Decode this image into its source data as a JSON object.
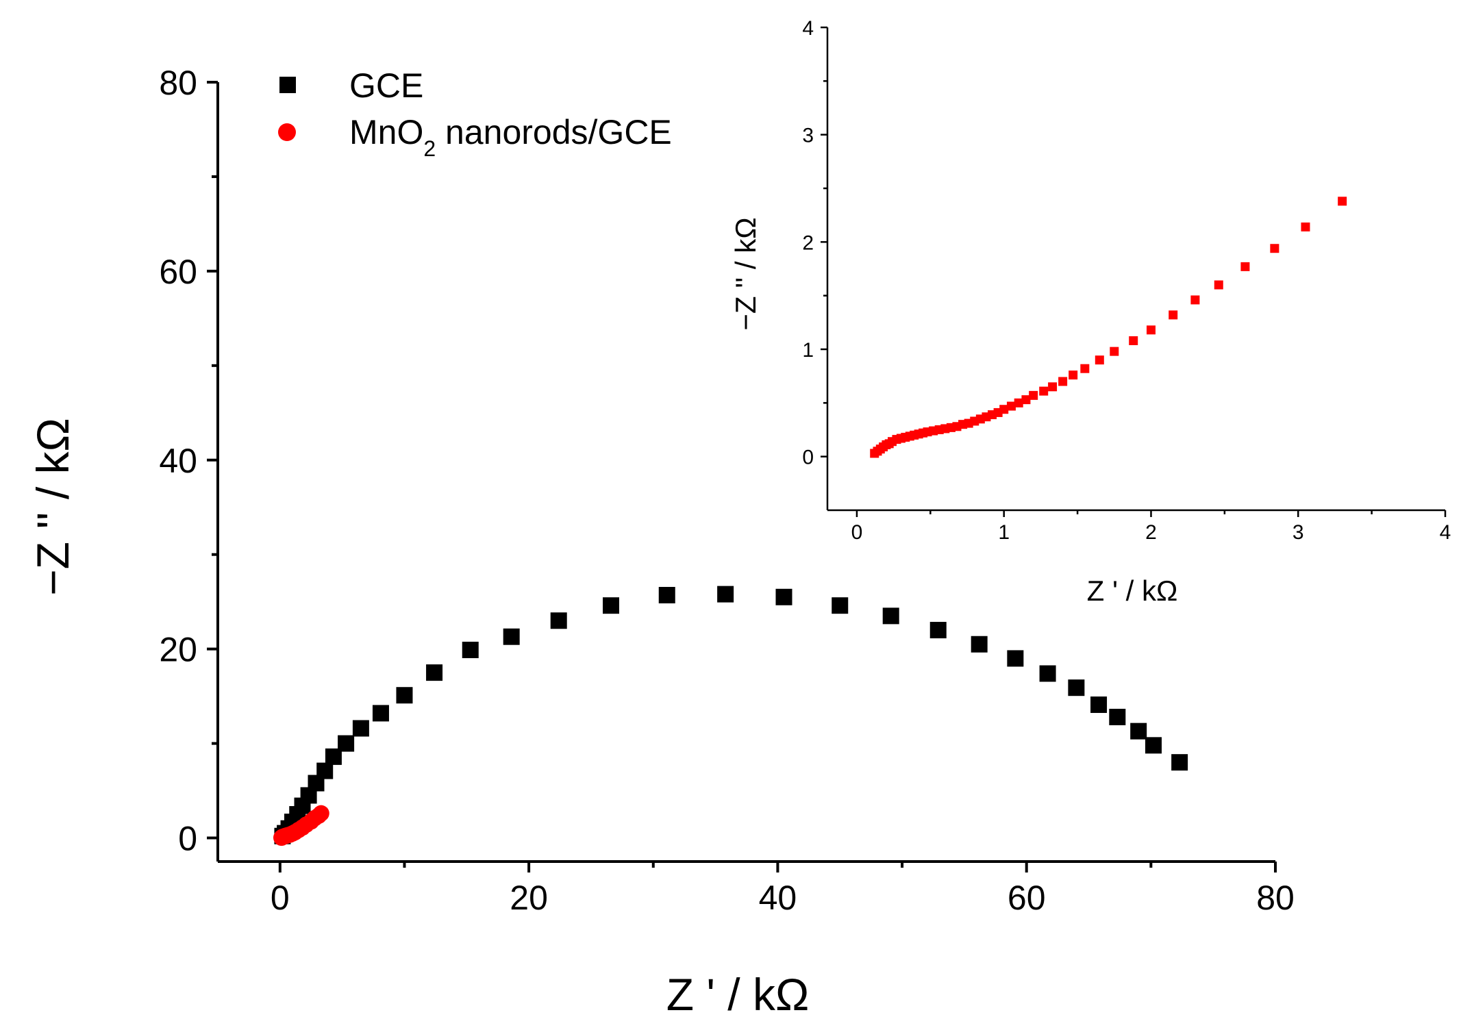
{
  "chart_data": [
    {
      "type": "scatter",
      "title": "",
      "xlabel": "Z ' / kΩ",
      "ylabel": "−Z '' / kΩ",
      "xlim": [
        -5,
        80
      ],
      "ylim": [
        -2.5,
        80
      ],
      "xticks": [
        "0",
        "20",
        "40",
        "60",
        "80"
      ],
      "yticks": [
        "0",
        "20",
        "40",
        "60",
        "80"
      ],
      "grid": false,
      "legend_position": "top-left",
      "series": [
        {
          "name": "GCE",
          "color": "#000000",
          "marker": "square",
          "x": [
            0.2,
            0.4,
            0.7,
            1.0,
            1.4,
            1.8,
            2.3,
            2.9,
            3.6,
            4.3,
            5.3,
            6.5,
            8.1,
            10.0,
            12.4,
            15.3,
            18.6,
            22.4,
            26.6,
            31.1,
            35.8,
            40.5,
            45.0,
            49.1,
            52.9,
            56.2,
            59.1,
            61.7,
            64.0,
            65.8,
            67.3,
            69.0,
            70.2,
            72.3
          ],
          "y": [
            0.2,
            0.5,
            1.0,
            1.7,
            2.5,
            3.4,
            4.5,
            5.8,
            7.1,
            8.6,
            10.0,
            11.6,
            13.2,
            15.1,
            17.5,
            19.9,
            21.3,
            23.0,
            24.6,
            25.7,
            25.8,
            25.5,
            24.6,
            23.5,
            22.0,
            20.5,
            19.0,
            17.4,
            15.9,
            14.1,
            12.8,
            11.3,
            9.8,
            8.0
          ]
        },
        {
          "name": "MnO2 nanorods/GCE",
          "color": "#ff0000",
          "marker": "circle",
          "x": [
            0.12,
            0.2,
            0.3,
            0.45,
            0.6,
            0.8,
            1.0,
            1.2,
            1.5,
            1.8,
            2.1,
            2.5,
            2.8,
            3.1,
            3.3
          ],
          "y": [
            0.03,
            0.1,
            0.15,
            0.22,
            0.28,
            0.35,
            0.47,
            0.6,
            0.85,
            1.1,
            1.4,
            1.75,
            2.1,
            2.35,
            2.6
          ]
        }
      ]
    },
    {
      "type": "scatter",
      "title": "",
      "xlabel": "Z ' / kΩ",
      "ylabel": "−Z '' / kΩ",
      "xlim": [
        -0.2,
        4
      ],
      "ylim": [
        -0.5,
        4
      ],
      "xticks": [
        "0",
        "1",
        "2",
        "3",
        "4"
      ],
      "yticks": [
        "0",
        "1",
        "2",
        "3",
        "4"
      ],
      "grid": false,
      "series": [
        {
          "name": "",
          "color": "#ff0000",
          "marker": "square",
          "x": [
            0.12,
            0.14,
            0.16,
            0.18,
            0.2,
            0.22,
            0.24,
            0.27,
            0.3,
            0.33,
            0.36,
            0.39,
            0.42,
            0.45,
            0.48,
            0.52,
            0.56,
            0.6,
            0.64,
            0.68,
            0.72,
            0.76,
            0.8,
            0.84,
            0.88,
            0.92,
            0.96,
            1.0,
            1.05,
            1.1,
            1.15,
            1.2,
            1.27,
            1.33,
            1.4,
            1.47,
            1.55,
            1.65,
            1.75,
            1.88,
            2.0,
            2.15,
            2.3,
            2.46,
            2.64,
            2.84,
            3.05,
            3.3
          ],
          "y": [
            0.03,
            0.05,
            0.07,
            0.09,
            0.11,
            0.12,
            0.14,
            0.16,
            0.17,
            0.18,
            0.19,
            0.2,
            0.21,
            0.22,
            0.23,
            0.24,
            0.25,
            0.26,
            0.27,
            0.28,
            0.3,
            0.31,
            0.33,
            0.35,
            0.37,
            0.39,
            0.41,
            0.44,
            0.47,
            0.5,
            0.53,
            0.57,
            0.61,
            0.65,
            0.7,
            0.76,
            0.82,
            0.9,
            0.98,
            1.08,
            1.18,
            1.32,
            1.46,
            1.6,
            1.77,
            1.94,
            2.14,
            2.38
          ]
        }
      ]
    }
  ],
  "legend": {
    "entries": [
      {
        "label": "GCE",
        "prefix": "",
        "sub": "",
        "suffix": ""
      },
      {
        "label": "MnO2 nanorods/GCE",
        "prefix": "MnO",
        "sub": "2",
        "suffix": " nanorods/GCE"
      }
    ]
  }
}
